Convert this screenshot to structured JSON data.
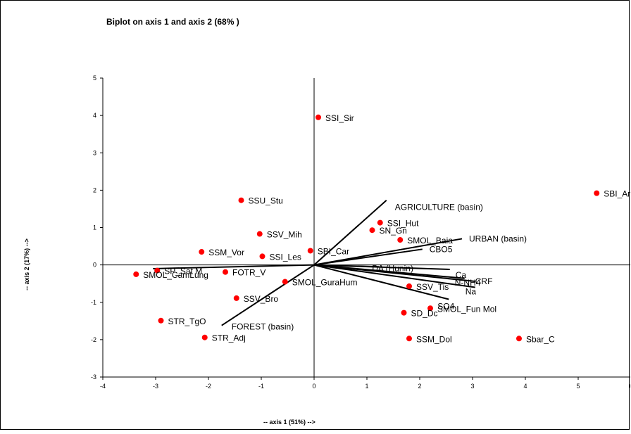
{
  "chart_data": {
    "type": "scatter",
    "title": "Biplot on axis 1 and axis 2 (68% )",
    "xlabel": "-- axis 1 (51%) -->",
    "ylabel": "-- axis 2 (17%) -->",
    "xlim": [
      -4,
      6
    ],
    "ylim": [
      -3,
      5
    ],
    "xticks": [
      "-4",
      "-3",
      "-2",
      "-1",
      "0",
      "1",
      "2",
      "3",
      "4",
      "5",
      "6"
    ],
    "yticks": [
      "-3",
      "-2",
      "-1",
      "0",
      "1",
      "2",
      "3",
      "4",
      "5"
    ],
    "point_color": "#ff0000",
    "points": [
      {
        "label": "SSI_Sir",
        "x": 0.08,
        "y": 3.95
      },
      {
        "label": "SBI_Ar",
        "x": 5.35,
        "y": 1.92
      },
      {
        "label": "SSU_Stu",
        "x": -1.38,
        "y": 1.73
      },
      {
        "label": "SSI_Hut",
        "x": 1.25,
        "y": 1.13
      },
      {
        "label": "SN_Gn",
        "x": 1.1,
        "y": 0.93
      },
      {
        "label": "SSV_Mih",
        "x": -1.03,
        "y": 0.83
      },
      {
        "label": "SMOL_Baia",
        "x": 1.63,
        "y": 0.67
      },
      {
        "label": "SSM_Vor",
        "x": -2.13,
        "y": 0.35
      },
      {
        "label": "SBI_Car",
        "x": -0.07,
        "y": 0.38
      },
      {
        "label": "SSI_Les",
        "x": -0.98,
        "y": 0.23
      },
      {
        "label": "SP_Sat M",
        "x": -2.97,
        "y": -0.15
      },
      {
        "label": "FOTR_V",
        "x": -1.68,
        "y": -0.19
      },
      {
        "label": "SMOL_CamLung",
        "x": -3.37,
        "y": -0.25
      },
      {
        "label": "SMOL_GuraHum",
        "x": -0.55,
        "y": -0.45
      },
      {
        "label": "SSV_Tis",
        "x": 1.8,
        "y": -0.57
      },
      {
        "label": "SSV_Bro",
        "x": -1.47,
        "y": -0.89
      },
      {
        "label": "SMOL_Fun Mol",
        "x": 2.2,
        "y": -1.16
      },
      {
        "label": "SD_Dc",
        "x": 1.7,
        "y": -1.28
      },
      {
        "label": "STR_TgO",
        "x": -2.9,
        "y": -1.49
      },
      {
        "label": "STR_Adj",
        "x": -2.07,
        "y": -1.94
      },
      {
        "label": "SSM_Dol",
        "x": 1.8,
        "y": -1.97
      },
      {
        "label": "Sbar_C",
        "x": 3.88,
        "y": -1.97
      }
    ],
    "vectors": [
      {
        "label": "AGRICULTURE  (basin)",
        "x": 1.37,
        "y": 1.73
      },
      {
        "label": "URBAN (basin)",
        "x": 2.8,
        "y": 0.7
      },
      {
        "label": "CBO5",
        "x": 2.05,
        "y": 0.42
      },
      {
        "label": "DA (Hunin)",
        "x": 1.23,
        "y": -0.05
      },
      {
        "label": "Ca",
        "x": 2.57,
        "y": -0.12
      },
      {
        "label": "N-NH4",
        "x": 2.85,
        "y": -0.36
      },
      {
        "label": "CRF",
        "x": 3.05,
        "y": -0.44
      },
      {
        "label": "Na",
        "x": 3.05,
        "y": -0.6
      },
      {
        "label": "SO4",
        "x": 2.55,
        "y": -0.92
      },
      {
        "label": "FOREST (basin)",
        "x": -1.75,
        "y": -1.62
      },
      {
        "label": "",
        "x": -3.05,
        "y": -0.1
      }
    ]
  }
}
